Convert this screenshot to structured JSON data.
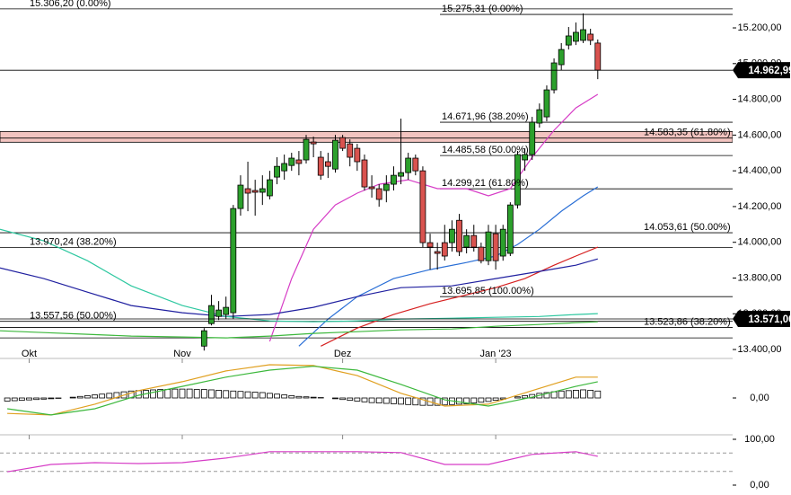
{
  "chart_data": [
    {
      "type": "candlestick",
      "xlim": [
        -4,
        96.5
      ],
      "xticks": [
        {
          "value": 0,
          "label": "Okt"
        },
        {
          "value": 21,
          "label": "Nov"
        },
        {
          "value": 43,
          "label": "Dez"
        },
        {
          "value": 64,
          "label": "Jan '23"
        }
      ],
      "ylim": [
        13355,
        15356
      ],
      "yticks": [
        {
          "value": 13400,
          "label": "13.400,00"
        },
        {
          "value": 13600,
          "label": "13.600,00"
        },
        {
          "value": 13800,
          "label": "13.800,00"
        },
        {
          "value": 14000,
          "label": "14.000,00"
        },
        {
          "value": 14200,
          "label": "14.200,00"
        },
        {
          "value": 14400,
          "label": "14.400,00"
        },
        {
          "value": 14600,
          "label": "14.600,00"
        },
        {
          "value": 14800,
          "label": "14.800,00"
        },
        {
          "value": 15000,
          "label": "15.000,00"
        },
        {
          "value": 15200,
          "label": "15.200,00"
        }
      ],
      "up_color": "#2ca02c",
      "down_color": "#d9534f",
      "x": [
        24,
        25,
        26,
        27,
        28,
        29,
        30,
        31,
        32,
        33,
        34,
        35,
        36,
        37,
        38,
        39,
        40,
        41,
        42,
        43,
        44,
        45,
        46,
        47,
        48,
        49,
        50,
        51,
        52,
        53,
        54,
        55,
        56,
        57,
        58,
        59,
        60,
        61,
        62,
        63,
        64,
        65,
        66,
        67,
        68,
        69,
        70,
        71,
        72,
        73,
        74,
        75,
        76,
        77,
        78
      ],
      "open": [
        13419,
        13545,
        13585,
        13596,
        13606,
        14189,
        14300,
        14290,
        14280,
        14260,
        14365,
        14400,
        14430,
        14461,
        14461,
        14561,
        14476,
        14451,
        14410,
        14586,
        14551,
        14526,
        14461,
        14310,
        14300,
        14290,
        14325,
        14370,
        14390,
        14471,
        14400,
        13998,
        13948,
        13998,
        13998,
        14123,
        13973,
        14038,
        13973,
        13897,
        14048,
        13923,
        13938,
        14209,
        14461,
        14491,
        14667,
        14702,
        14853,
        14994,
        15104,
        15125,
        15130,
        15165,
        15115
      ],
      "high": [
        13520,
        13706,
        13671,
        13696,
        14209,
        14375,
        14451,
        14350,
        14375,
        14400,
        14476,
        14491,
        14501,
        14511,
        14601,
        14591,
        14511,
        14501,
        14601,
        14601,
        14576,
        14551,
        14491,
        14375,
        14325,
        14375,
        14425,
        14692,
        14501,
        14491,
        14425,
        14048,
        13998,
        14098,
        14123,
        14159,
        14073,
        14098,
        13998,
        14098,
        14098,
        14098,
        14224,
        14511,
        14526,
        14702,
        14777,
        14878,
        15029,
        15115,
        15205,
        15230,
        15281,
        15195,
        15135
      ],
      "low": [
        13394,
        13535,
        13565,
        13570,
        13570,
        14149,
        14174,
        14149,
        14209,
        14240,
        14325,
        14350,
        14400,
        14375,
        14441,
        14476,
        14350,
        14360,
        14390,
        14511,
        14425,
        14400,
        14290,
        14250,
        14199,
        14224,
        14290,
        14325,
        14350,
        14375,
        13973,
        13847,
        13847,
        13898,
        13948,
        13923,
        13938,
        13948,
        13882,
        13872,
        13847,
        13897,
        13923,
        14189,
        14400,
        14461,
        14642,
        14677,
        14833,
        14964,
        15079,
        15104,
        15115,
        15104,
        14913
      ],
      "close": [
        13505,
        13646,
        13621,
        13636,
        14189,
        14320,
        14275,
        14280,
        14300,
        14350,
        14425,
        14441,
        14471,
        14441,
        14576,
        14551,
        14375,
        14425,
        14571,
        14526,
        14476,
        14451,
        14310,
        14300,
        14240,
        14325,
        14375,
        14390,
        14471,
        14400,
        13998,
        13973,
        13938,
        13923,
        14073,
        13948,
        14038,
        13973,
        13897,
        14058,
        13897,
        14073,
        14209,
        14491,
        14491,
        14672,
        14742,
        14853,
        15004,
        15079,
        15155,
        15175,
        15190,
        15130,
        14962.99
      ],
      "series": [
        {
          "color": "#d63cc6",
          "x": [
            33,
            36,
            39,
            42,
            45,
            48,
            52,
            56,
            60,
            63,
            66,
            69,
            72,
            75,
            78
          ],
          "values": [
            13445,
            13797,
            14073,
            14209,
            14275,
            14325,
            14350,
            14300,
            14300,
            14260,
            14300,
            14476,
            14627,
            14752,
            14828
          ]
        },
        {
          "color": "#2a6fd6",
          "x": [
            37,
            41,
            45,
            50,
            55,
            60,
            64,
            67,
            70,
            73,
            76,
            78
          ],
          "values": [
            13419,
            13570,
            13696,
            13797,
            13847,
            13887,
            13923,
            13988,
            14073,
            14174,
            14260,
            14310
          ]
        },
        {
          "color": "#d62020",
          "x": [
            40,
            45,
            50,
            55,
            60,
            64,
            68,
            72,
            75,
            78
          ],
          "values": [
            13419,
            13520,
            13596,
            13656,
            13706,
            13746,
            13797,
            13872,
            13923,
            13973
          ]
        },
        {
          "color": "#2020a0",
          "x": [
            -4,
            2,
            8,
            14,
            21,
            27,
            33,
            39,
            45,
            51,
            58,
            64,
            70,
            75,
            78
          ],
          "values": [
            13857,
            13797,
            13721,
            13646,
            13606,
            13585,
            13596,
            13636,
            13696,
            13746,
            13756,
            13797,
            13837,
            13872,
            13907
          ]
        },
        {
          "color": "#2ec8a0",
          "x": [
            -4,
            2,
            8,
            14,
            21,
            27,
            33,
            39,
            45,
            51,
            58,
            64,
            70,
            75,
            78
          ],
          "values": [
            14073,
            14008,
            13897,
            13756,
            13646,
            13585,
            13560,
            13555,
            13560,
            13570,
            13575,
            13580,
            13585,
            13596,
            13601
          ]
        },
        {
          "color": "#3cb83c",
          "x": [
            -4,
            2,
            8,
            14,
            21,
            27,
            33,
            39,
            45,
            51,
            58,
            64,
            70,
            75,
            78
          ],
          "values": [
            13505,
            13495,
            13485,
            13475,
            13470,
            13465,
            13475,
            13490,
            13500,
            13510,
            13515,
            13530,
            13540,
            13550,
            13555
          ]
        }
      ],
      "levels": [
        {
          "value": 15306.2,
          "label": "15.306,20 (0.00%)"
        },
        {
          "value": 15275.31,
          "label": "15.275,31 (0.00%)"
        },
        {
          "value": 14671.96,
          "label": "14.671,96 (38.20%)"
        },
        {
          "value": 14583.35,
          "label": "14.583,35 (61.80%)"
        },
        {
          "value": 14485.58,
          "label": "14.485,58 (50.00%)"
        },
        {
          "value": 14299.21,
          "label": "14.299,21 (61.80%)"
        },
        {
          "value": 14053.61,
          "label": "14.053,61 (50.00%)"
        },
        {
          "value": 13970.24,
          "label": "13.970,24 (38.20%)"
        },
        {
          "value": 13695.85,
          "label": "13.695,85 (100.00%)"
        },
        {
          "value": 13557.56,
          "label": "13.557,56 (50.00%)"
        },
        {
          "value": 13523.86,
          "label": "13.523,86 (38.20%)"
        }
      ],
      "zone": [
        14560,
        14620
      ],
      "zone_color": "#f2c4c0",
      "lines": [
        13465
      ],
      "price_markers": [
        {
          "value": 14962.99,
          "label": "14.962,99"
        },
        {
          "value": 13571,
          "label": "13.571,00"
        }
      ]
    },
    {
      "type": "macd",
      "ylim": [
        -100,
        100
      ],
      "yticks": [
        {
          "value": 0,
          "label": "0,00"
        }
      ],
      "x": [
        -3,
        -2,
        -1,
        0,
        1,
        2,
        3,
        4,
        5,
        6,
        7,
        8,
        9,
        10,
        11,
        12,
        13,
        14,
        15,
        16,
        17,
        18,
        19,
        20,
        21,
        22,
        23,
        24,
        25,
        26,
        27,
        28,
        29,
        30,
        31,
        32,
        33,
        34,
        35,
        36,
        37,
        38,
        39,
        40,
        41,
        42,
        43,
        44,
        45,
        46,
        47,
        48,
        49,
        50,
        51,
        52,
        53,
        54,
        55,
        56,
        57,
        58,
        59,
        60,
        61,
        62,
        63,
        64,
        65,
        66,
        67,
        68,
        69,
        70,
        71,
        72,
        73,
        74,
        75,
        76,
        77,
        78
      ],
      "histogram": [
        -8,
        -7,
        -6,
        -5,
        -4,
        -3,
        -2,
        -1,
        0,
        2,
        4,
        6,
        8,
        10,
        12,
        14,
        16,
        18,
        19,
        20,
        21,
        22,
        22,
        23,
        23,
        23,
        22,
        22,
        21,
        20,
        19,
        18,
        17,
        16,
        15,
        14,
        12,
        10,
        8,
        6,
        4,
        3,
        2,
        1,
        0,
        -2,
        -4,
        -6,
        -8,
        -10,
        -12,
        -13,
        -14,
        -15,
        -16,
        -17,
        -18,
        -19,
        -19,
        -19,
        -18,
        -17,
        -16,
        -15,
        -13,
        -11,
        -9,
        -6,
        -3,
        0,
        3,
        6,
        9,
        12,
        14,
        16,
        18,
        19,
        20,
        21,
        20,
        18
      ],
      "series": [
        {
          "color": "#e0a020",
          "x": [
            -3,
            3,
            9,
            15,
            21,
            27,
            33,
            39,
            45,
            51,
            57,
            63,
            69,
            75,
            78
          ],
          "values": [
            -40,
            -44,
            -16,
            19,
            42,
            70,
            86,
            84,
            58,
            12,
            -21,
            -16,
            19,
            54,
            54
          ]
        },
        {
          "color": "#3cb83c",
          "x": [
            -3,
            3,
            9,
            15,
            21,
            27,
            33,
            39,
            45,
            51,
            57,
            63,
            69,
            75,
            78
          ],
          "values": [
            -28,
            -44,
            -28,
            7,
            30,
            54,
            72,
            82,
            72,
            35,
            -5,
            -21,
            2,
            30,
            42
          ]
        }
      ]
    },
    {
      "type": "line",
      "ylim": [
        0,
        100
      ],
      "yticks": [
        {
          "value": 0,
          "label": "0,00"
        },
        {
          "value": 100,
          "label": "100,00"
        }
      ],
      "levels": [
        30,
        70
      ],
      "series": [
        {
          "color": "#d63cc6",
          "x": [
            -3,
            3,
            9,
            15,
            21,
            27,
            33,
            39,
            45,
            51,
            57,
            63,
            69,
            75,
            78
          ],
          "values": [
            29,
            45,
            49,
            47,
            49,
            59,
            73,
            73,
            73,
            71,
            45,
            45,
            67,
            73,
            63
          ]
        }
      ]
    }
  ]
}
